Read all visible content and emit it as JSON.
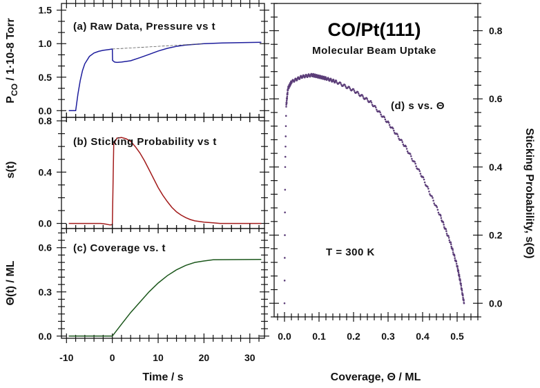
{
  "title": "CO/Pt(111)",
  "subtitle": "Molecular Beam Uptake",
  "annotation_temp": "T = 300 K",
  "colors": {
    "a": "#1c1c9c",
    "b": "#a21a1a",
    "c": "#1a561a",
    "d": "#5b3d78"
  },
  "chart_data": [
    {
      "type": "line",
      "panel_label": "(a) Raw Data, Pressure vs t",
      "ylabel_main": "P",
      "ylabel_sub": "CO",
      "ylabel_rest": " / 1·10-8 Torr",
      "xlim": [
        -11.1,
        33.2
      ],
      "ylim": [
        -0.1,
        1.6
      ],
      "yticks": [
        0.0,
        0.5,
        1.0,
        1.5
      ],
      "ytick_labels": [
        "0.0",
        "0.5",
        "1.0",
        "1.5"
      ],
      "x": [
        -9.5,
        -8,
        -7.5,
        -7,
        -6.5,
        -6,
        -5,
        -4,
        -3,
        -2,
        -1,
        0,
        0.05,
        0.5,
        1,
        2,
        4,
        6,
        8,
        10,
        12,
        14,
        16,
        18,
        20,
        24,
        28,
        32.5
      ],
      "y": [
        0,
        0,
        0.25,
        0.45,
        0.6,
        0.7,
        0.81,
        0.86,
        0.885,
        0.9,
        0.91,
        0.92,
        0.75,
        0.725,
        0.72,
        0.725,
        0.745,
        0.79,
        0.84,
        0.89,
        0.93,
        0.96,
        0.98,
        0.99,
        1.0,
        1.01,
        1.015,
        1.02
      ],
      "baseline": {
        "x": [
          0,
          20
        ],
        "y": [
          0.92,
          1.0
        ]
      }
    },
    {
      "type": "line",
      "panel_label": "(b) Sticking Probability vs t",
      "ylabel": "s(t)",
      "xlim": [
        -11.1,
        33.2
      ],
      "ylim": [
        -0.04,
        0.827
      ],
      "yticks": [
        0.0,
        0.4,
        0.8
      ],
      "ytick_labels": [
        "0.0",
        "0.4",
        "0.8"
      ],
      "x": [
        -9.5,
        -2.5,
        -1.5,
        -0.5,
        0,
        0.3,
        1,
        2,
        3,
        4,
        5,
        6,
        7,
        8,
        9,
        10,
        11,
        12,
        13,
        14,
        15,
        16,
        17,
        18,
        20,
        22,
        23.5,
        32.5
      ],
      "y": [
        0,
        0,
        -0.005,
        -0.012,
        -0.01,
        0.62,
        0.665,
        0.67,
        0.66,
        0.64,
        0.6,
        0.55,
        0.49,
        0.42,
        0.35,
        0.28,
        0.22,
        0.17,
        0.125,
        0.09,
        0.065,
        0.045,
        0.03,
        0.02,
        0.01,
        0.004,
        0,
        0
      ]
    },
    {
      "type": "line",
      "panel_label": "(c) Coverage vs. t",
      "ylabel": "Θ(t) / ML",
      "xlabel": "Time / s",
      "xlim": [
        -11.1,
        33.2
      ],
      "ylim": [
        -0.015,
        0.73
      ],
      "xticks": [
        -10,
        0,
        10,
        20,
        30
      ],
      "xtick_labels": [
        "-10",
        "0",
        "10",
        "20",
        "30"
      ],
      "yticks": [
        0.0,
        0.3,
        0.6
      ],
      "ytick_labels": [
        "0.0",
        "0.3",
        "0.6"
      ],
      "x": [
        -9.5,
        0,
        2,
        4,
        6,
        8,
        10,
        12,
        14,
        16,
        18,
        20,
        22,
        32.5
      ],
      "y": [
        0,
        0,
        0.08,
        0.16,
        0.23,
        0.3,
        0.36,
        0.41,
        0.45,
        0.48,
        0.5,
        0.51,
        0.518,
        0.52
      ]
    },
    {
      "type": "scatter",
      "panel_label": "(d) s vs. Θ",
      "xlabel": "Coverage, Θ / ML",
      "ylabel": "Sticking Probability, s(Θ)",
      "xlim": [
        -0.03,
        0.56
      ],
      "ylim": [
        -0.04,
        0.88
      ],
      "xticks": [
        0.0,
        0.1,
        0.2,
        0.3,
        0.4,
        0.5
      ],
      "xtick_labels": [
        "0.0",
        "0.1",
        "0.2",
        "0.3",
        "0.4",
        "0.5"
      ],
      "yticks": [
        0.0,
        0.2,
        0.4,
        0.6,
        0.8
      ],
      "ytick_labels": [
        "0.0",
        "0.2",
        "0.4",
        "0.6",
        "0.8"
      ],
      "x": [
        0,
        0.002,
        0.005,
        0.01,
        0.02,
        0.05,
        0.08,
        0.1,
        0.12,
        0.15,
        0.2,
        0.25,
        0.3,
        0.35,
        0.4,
        0.45,
        0.48,
        0.5,
        0.51,
        0.52
      ],
      "y": [
        0,
        0.4,
        0.58,
        0.63,
        0.65,
        0.665,
        0.67,
        0.665,
        0.66,
        0.65,
        0.625,
        0.59,
        0.53,
        0.46,
        0.37,
        0.26,
        0.18,
        0.11,
        0.06,
        0.0
      ]
    }
  ]
}
